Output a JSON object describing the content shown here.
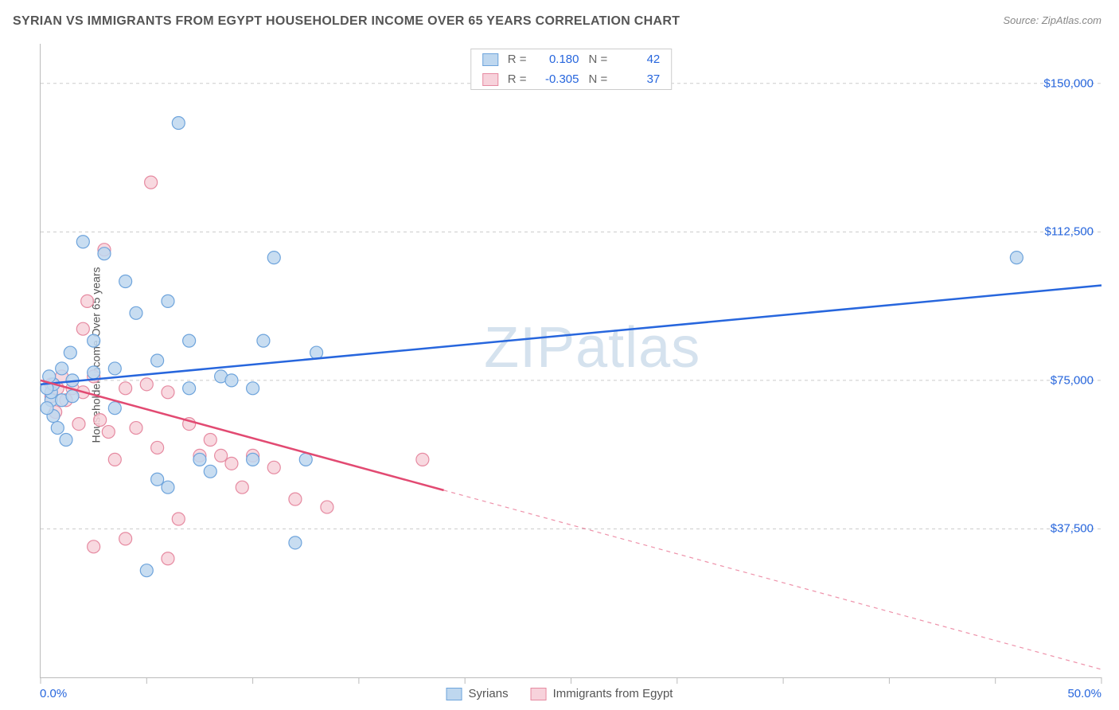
{
  "title": "SYRIAN VS IMMIGRANTS FROM EGYPT HOUSEHOLDER INCOME OVER 65 YEARS CORRELATION CHART",
  "source": "Source: ZipAtlas.com",
  "watermark": "ZIPatlas",
  "chart": {
    "type": "scatter",
    "ylabel": "Householder Income Over 65 years",
    "xlim": [
      0,
      50
    ],
    "ylim": [
      0,
      160000
    ],
    "x_axis": {
      "min_label": "0.0%",
      "max_label": "50.0%",
      "ticks": [
        0,
        5,
        10,
        15,
        20,
        25,
        30,
        35,
        40,
        45,
        50
      ]
    },
    "y_axis_ticks": [
      {
        "value": 37500,
        "label": "$37,500"
      },
      {
        "value": 75000,
        "label": "$75,000"
      },
      {
        "value": 112500,
        "label": "$112,500"
      },
      {
        "value": 150000,
        "label": "$150,000"
      }
    ],
    "grid_color": "#cccccc",
    "background_color": "#ffffff",
    "marker_radius": 8,
    "marker_stroke_width": 1.2,
    "trend_line_width": 2.5,
    "series": [
      {
        "name": "Syrians",
        "fill": "#bed7ef",
        "stroke": "#6ea4dc",
        "trend_color": "#2766dd",
        "R": "0.180",
        "N": "42",
        "trend": {
          "x1": 0,
          "y1": 74000,
          "x2": 50,
          "y2": 99000,
          "solid_until": 50
        },
        "points": [
          [
            0.5,
            70000
          ],
          [
            0.5,
            72000
          ],
          [
            0.6,
            74000
          ],
          [
            0.6,
            66000
          ],
          [
            0.8,
            63000
          ],
          [
            1.0,
            70000
          ],
          [
            1.0,
            78000
          ],
          [
            1.2,
            60000
          ],
          [
            1.4,
            82000
          ],
          [
            1.5,
            71000
          ],
          [
            1.5,
            75000
          ],
          [
            2.0,
            110000
          ],
          [
            2.5,
            85000
          ],
          [
            2.5,
            77000
          ],
          [
            3.0,
            107000
          ],
          [
            3.5,
            78000
          ],
          [
            3.5,
            68000
          ],
          [
            4.0,
            100000
          ],
          [
            4.5,
            92000
          ],
          [
            5.0,
            27000
          ],
          [
            5.5,
            50000
          ],
          [
            5.5,
            80000
          ],
          [
            6.0,
            95000
          ],
          [
            6.0,
            48000
          ],
          [
            6.5,
            140000
          ],
          [
            7.0,
            85000
          ],
          [
            7.0,
            73000
          ],
          [
            7.5,
            55000
          ],
          [
            8.0,
            52000
          ],
          [
            8.5,
            76000
          ],
          [
            9.0,
            75000
          ],
          [
            10.0,
            55000
          ],
          [
            10.0,
            73000
          ],
          [
            10.5,
            85000
          ],
          [
            11.0,
            106000
          ],
          [
            12.0,
            34000
          ],
          [
            12.5,
            55000
          ],
          [
            13.0,
            82000
          ],
          [
            46.0,
            106000
          ],
          [
            0.3,
            68000
          ],
          [
            0.3,
            73000
          ],
          [
            0.4,
            76000
          ]
        ]
      },
      {
        "name": "Immigrants from Egypt",
        "fill": "#f7d2db",
        "stroke": "#e68aa1",
        "trend_color": "#e24a72",
        "R": "-0.305",
        "N": "37",
        "trend": {
          "x1": 0,
          "y1": 75000,
          "x2": 50,
          "y2": 2000,
          "solid_until": 19
        },
        "points": [
          [
            0.5,
            71000
          ],
          [
            0.5,
            74000
          ],
          [
            0.7,
            67000
          ],
          [
            0.8,
            73000
          ],
          [
            1.0,
            76000
          ],
          [
            1.2,
            70000
          ],
          [
            1.5,
            73000
          ],
          [
            1.8,
            64000
          ],
          [
            2.0,
            88000
          ],
          [
            2.0,
            72000
          ],
          [
            2.2,
            95000
          ],
          [
            2.5,
            76000
          ],
          [
            2.8,
            65000
          ],
          [
            3.0,
            108000
          ],
          [
            3.2,
            62000
          ],
          [
            3.5,
            55000
          ],
          [
            4.0,
            73000
          ],
          [
            4.0,
            35000
          ],
          [
            4.5,
            63000
          ],
          [
            5.0,
            74000
          ],
          [
            5.2,
            125000
          ],
          [
            5.5,
            58000
          ],
          [
            6.0,
            72000
          ],
          [
            6.5,
            40000
          ],
          [
            7.0,
            64000
          ],
          [
            7.5,
            56000
          ],
          [
            8.0,
            60000
          ],
          [
            8.5,
            56000
          ],
          [
            9.0,
            54000
          ],
          [
            9.5,
            48000
          ],
          [
            10.0,
            56000
          ],
          [
            11.0,
            53000
          ],
          [
            12.0,
            45000
          ],
          [
            13.5,
            43000
          ],
          [
            18.0,
            55000
          ],
          [
            2.5,
            33000
          ],
          [
            6.0,
            30000
          ]
        ]
      }
    ]
  },
  "legend_top": {
    "r_label": "R =",
    "n_label": "N ="
  },
  "legend_bottom_labels": [
    "Syrians",
    "Immigrants from Egypt"
  ]
}
